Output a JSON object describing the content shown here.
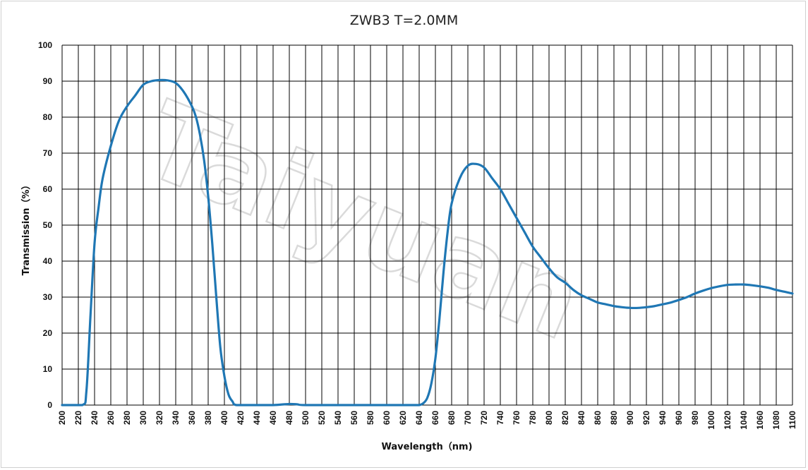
{
  "chart_data": {
    "type": "line",
    "title": "ZWB3 T=2.0MM",
    "xlabel": "Wavelength（nm)",
    "ylabel": "Transmission（%）",
    "xlim": [
      200,
      1100
    ],
    "ylim": [
      0,
      100
    ],
    "x_ticks": [
      200,
      220,
      240,
      260,
      280,
      300,
      320,
      340,
      360,
      380,
      400,
      420,
      440,
      460,
      480,
      500,
      520,
      540,
      560,
      580,
      600,
      620,
      640,
      660,
      680,
      700,
      720,
      740,
      760,
      780,
      800,
      820,
      840,
      860,
      880,
      900,
      920,
      940,
      960,
      980,
      1000,
      1020,
      1040,
      1060,
      1080,
      1100
    ],
    "y_ticks": [
      0,
      10,
      20,
      30,
      40,
      50,
      60,
      70,
      80,
      90,
      100
    ],
    "grid": true,
    "legend": "none",
    "watermark": "Taiyuan",
    "series": [
      {
        "color": "#1f77b4",
        "points": [
          [
            200,
            0
          ],
          [
            225,
            0
          ],
          [
            230,
            4
          ],
          [
            235,
            25
          ],
          [
            240,
            45
          ],
          [
            245,
            55
          ],
          [
            250,
            63
          ],
          [
            260,
            72
          ],
          [
            270,
            79
          ],
          [
            280,
            83
          ],
          [
            290,
            86
          ],
          [
            300,
            89
          ],
          [
            310,
            90
          ],
          [
            320,
            90.3
          ],
          [
            330,
            90.2
          ],
          [
            340,
            89.5
          ],
          [
            350,
            87
          ],
          [
            360,
            83
          ],
          [
            365,
            80
          ],
          [
            370,
            75
          ],
          [
            375,
            68
          ],
          [
            380,
            58
          ],
          [
            385,
            45
          ],
          [
            390,
            30
          ],
          [
            395,
            16
          ],
          [
            400,
            8
          ],
          [
            405,
            3
          ],
          [
            410,
            1
          ],
          [
            415,
            0
          ],
          [
            440,
            0
          ],
          [
            460,
            0
          ],
          [
            480,
            0.3
          ],
          [
            490,
            0.2
          ],
          [
            500,
            0
          ],
          [
            560,
            0
          ],
          [
            600,
            0
          ],
          [
            630,
            0
          ],
          [
            640,
            0
          ],
          [
            645,
            0.5
          ],
          [
            650,
            2
          ],
          [
            655,
            6
          ],
          [
            660,
            13
          ],
          [
            665,
            24
          ],
          [
            670,
            37
          ],
          [
            675,
            48
          ],
          [
            680,
            56
          ],
          [
            690,
            63
          ],
          [
            700,
            66.5
          ],
          [
            710,
            67
          ],
          [
            720,
            66
          ],
          [
            730,
            63
          ],
          [
            740,
            60
          ],
          [
            750,
            56
          ],
          [
            760,
            52
          ],
          [
            770,
            48
          ],
          [
            780,
            44
          ],
          [
            790,
            41
          ],
          [
            800,
            38
          ],
          [
            810,
            35.5
          ],
          [
            820,
            34
          ],
          [
            830,
            32
          ],
          [
            840,
            30.5
          ],
          [
            850,
            29.5
          ],
          [
            860,
            28.5
          ],
          [
            870,
            28
          ],
          [
            880,
            27.5
          ],
          [
            890,
            27.2
          ],
          [
            900,
            27
          ],
          [
            910,
            27
          ],
          [
            920,
            27.2
          ],
          [
            930,
            27.5
          ],
          [
            940,
            28
          ],
          [
            950,
            28.5
          ],
          [
            960,
            29.2
          ],
          [
            970,
            30
          ],
          [
            980,
            31
          ],
          [
            990,
            31.8
          ],
          [
            1000,
            32.5
          ],
          [
            1010,
            33
          ],
          [
            1020,
            33.4
          ],
          [
            1030,
            33.5
          ],
          [
            1040,
            33.5
          ],
          [
            1050,
            33.3
          ],
          [
            1060,
            33
          ],
          [
            1070,
            32.6
          ],
          [
            1080,
            32
          ],
          [
            1090,
            31.5
          ],
          [
            1100,
            31
          ]
        ]
      }
    ]
  }
}
